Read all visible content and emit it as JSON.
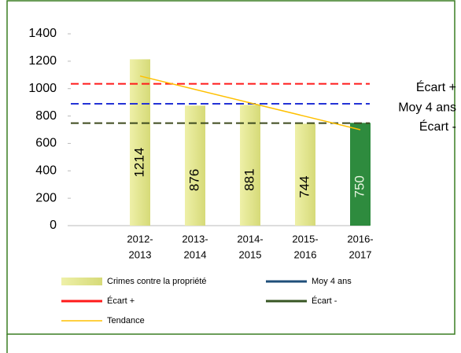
{
  "chart_data": {
    "type": "bar",
    "categories": [
      [
        "2012-",
        "2013"
      ],
      [
        "2013-",
        "2014"
      ],
      [
        "2014-",
        "2015"
      ],
      [
        "2015-",
        "2016"
      ],
      [
        "2016-",
        "2017"
      ]
    ],
    "series": [
      {
        "name": "Crimes contre la propriété",
        "type": "bar",
        "color": "#dfe28a",
        "colors": [
          "#dfe28a",
          "#dfe28a",
          "#dfe28a",
          "#dfe28a",
          "#2e8b3e"
        ],
        "values": [
          1214,
          876,
          881,
          744,
          750
        ]
      },
      {
        "name": "Moy 4 ans",
        "type": "hline",
        "color": "#2433d6",
        "legend_color": "#1f4e79",
        "value": 889
      },
      {
        "name": "Écart +",
        "type": "hline",
        "color": "#ff1a1a",
        "legend_color": "#ff1a1a",
        "value": 1035
      },
      {
        "name": "Écart -",
        "type": "hline",
        "color": "#3d4a1e",
        "legend_color": "#375623",
        "value": 748
      },
      {
        "name": "Tendance",
        "type": "line",
        "color": "#ffc000",
        "legend_color": "#ffc000",
        "values": [
          1092,
          994,
          896,
          798,
          700
        ]
      }
    ],
    "ylim": [
      0,
      1400
    ],
    "yticks": [
      0,
      200,
      400,
      600,
      800,
      1000,
      1200,
      1400
    ]
  }
}
